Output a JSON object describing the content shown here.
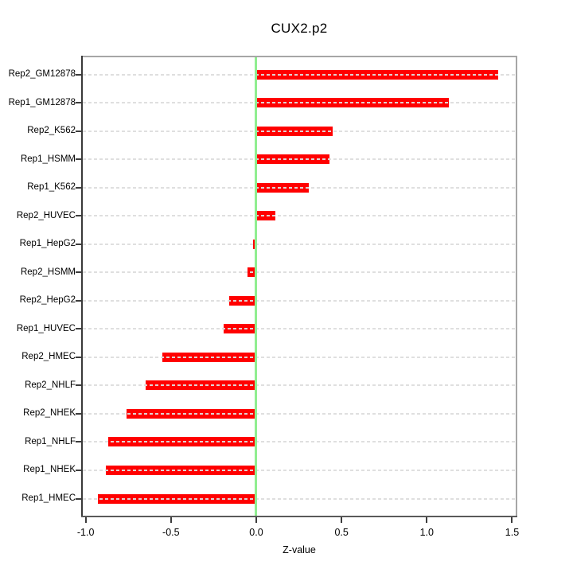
{
  "figure": {
    "title": "CUX2.p2",
    "xlabel": "Z-value"
  },
  "chart_data": {
    "type": "bar",
    "orientation": "horizontal",
    "title": "CUX2.p2",
    "xlabel": "Z-value",
    "ylabel": "",
    "categories": [
      "Rep2_GM12878",
      "Rep1_GM12878",
      "Rep2_K562",
      "Rep1_HSMM",
      "Rep1_K562",
      "Rep2_HUVEC",
      "Rep1_HepG2",
      "Rep2_HSMM",
      "Rep2_HepG2",
      "Rep1_HUVEC",
      "Rep2_HMEC",
      "Rep2_NHLF",
      "Rep2_NHEK",
      "Rep1_NHLF",
      "Rep1_NHEK",
      "Rep1_HMEC"
    ],
    "values": [
      1.42,
      1.13,
      0.45,
      0.43,
      0.31,
      0.11,
      -0.02,
      -0.05,
      -0.16,
      -0.19,
      -0.55,
      -0.65,
      -0.76,
      -0.87,
      -0.88,
      -0.93
    ],
    "xlim": [
      -1.017,
      1.521
    ],
    "xticks": [
      -1.0,
      -0.5,
      0.0,
      0.5,
      1.0,
      1.5
    ],
    "xtick_labels": [
      "-1.0",
      "-0.5",
      "0.0",
      "0.5",
      "1.0",
      "1.5"
    ],
    "grid": "dashed-horizontal-per-category",
    "legend": "none",
    "zero_reference_line": 0.0,
    "colors": {
      "bar": "#ff0000",
      "zero_line": "#90ee90",
      "grid_line": "#dddddd",
      "box_light": "#a6a6a6",
      "axis_left": "#3a3a3a",
      "axis_bottom": "#5a5a5a",
      "text": "#000000",
      "background": "#ffffff"
    }
  }
}
